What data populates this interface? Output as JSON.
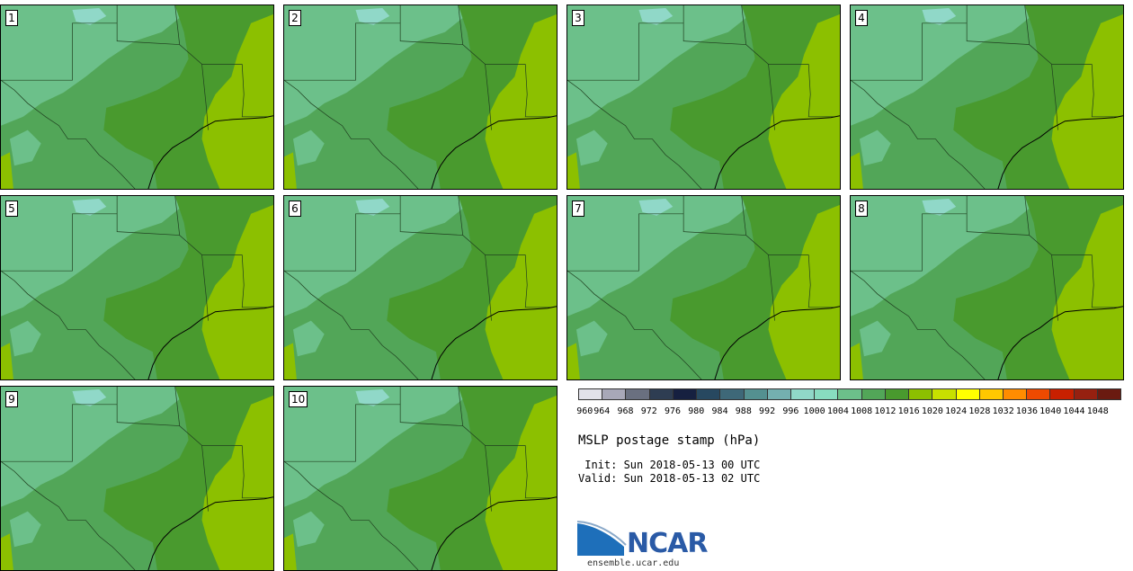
{
  "panels": [
    {
      "label": "1"
    },
    {
      "label": "2"
    },
    {
      "label": "3"
    },
    {
      "label": "4"
    },
    {
      "label": "5"
    },
    {
      "label": "6"
    },
    {
      "label": "7"
    },
    {
      "label": "8"
    },
    {
      "label": "9"
    },
    {
      "label": "10"
    }
  ],
  "legend": {
    "colors": [
      "#e2e2ea",
      "#a8a8b8",
      "#6a7080",
      "#2e3d52",
      "#162040",
      "#274860",
      "#3e6878",
      "#549090",
      "#74b0b0",
      "#90d8c8",
      "#88dcc0",
      "#6cc08a",
      "#52a658",
      "#499a2e",
      "#8cc000",
      "#c8e000",
      "#ffff00",
      "#ffc800",
      "#ff8c00",
      "#ee4a00",
      "#c82000",
      "#962010",
      "#6a1a10"
    ],
    "ticks": [
      "960",
      "964",
      "968",
      "972",
      "976",
      "980",
      "984",
      "988",
      "992",
      "996",
      "1000",
      "1004",
      "1008",
      "1012",
      "1016",
      "1020",
      "1024",
      "1028",
      "1032",
      "1036",
      "1040",
      "1044",
      "1048"
    ]
  },
  "title": "MSLP postage stamp (hPa)",
  "init_line": " Init: Sun 2018-05-13 00 UTC",
  "valid_line": "Valid: Sun 2018-05-13 02 UTC",
  "logo": {
    "name": "NCAR",
    "url": "ensemble.ucar.edu"
  }
}
